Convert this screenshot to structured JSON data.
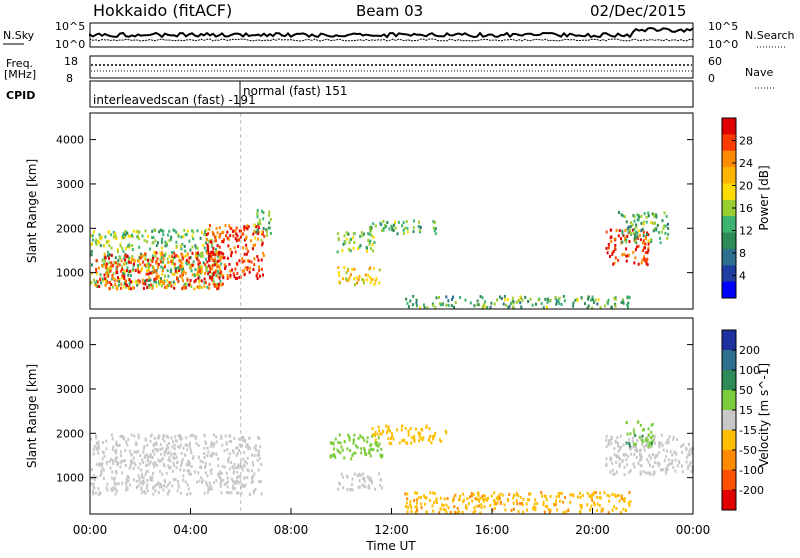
{
  "header": {
    "station": "Hokkaido (fitACF)",
    "beam": "Beam 03",
    "date": "02/Dec/2015"
  },
  "noise_panel": {
    "left_label": "N.Sky",
    "right_label": "N.Search",
    "left_ticks": [
      "10^5",
      "10^0"
    ],
    "right_ticks": [
      "10^5",
      "10^0"
    ]
  },
  "freq_panel": {
    "left_label_1": "Freq.",
    "left_label_2": "[MHz]",
    "left_ticks": [
      "18",
      "8"
    ],
    "right_label": "Nave",
    "right_ticks": [
      "60",
      "0"
    ]
  },
  "cpid_panel": {
    "label": "CPID",
    "program_1": "interleavedscan (fast) -191",
    "program_2": "normal (fast) 151"
  },
  "power_panel": {
    "ylabel": "Slant Range [km]",
    "colorbar_label": "Power [dB]",
    "colorbar_ticks": [
      "28",
      "24",
      "20",
      "16",
      "12",
      "8",
      "4"
    ],
    "colorbar_colors": [
      "#e10000",
      "#ff3c00",
      "#ff8c00",
      "#ffb400",
      "#ffdc00",
      "#9acd32",
      "#3cb371",
      "#2e8b57",
      "#2f6f8f",
      "#1e3f9f",
      "#0000ff"
    ]
  },
  "velocity_panel": {
    "ylabel": "Slant Range [km]",
    "colorbar_label": "Velocity [m s^-1]",
    "colorbar_ticks": [
      "200",
      "100",
      "50",
      "15",
      "-15",
      "-50",
      "-100",
      "-200"
    ],
    "colorbar_colors": [
      "#1e2fa0",
      "#2e6f8f",
      "#2e8b57",
      "#7ccd3c",
      "#c8c8c8",
      "#ffbf00",
      "#ff8c00",
      "#ff5000",
      "#e10000"
    ]
  },
  "xaxis": {
    "label": "Time UT",
    "ticks": [
      "00:00",
      "04:00",
      "08:00",
      "12:00",
      "16:00",
      "20:00",
      "00:00"
    ]
  },
  "chart_data": {
    "type": "heatmap",
    "title": "Hokkaido (fitACF)  Beam 03  02/Dec/2015",
    "xlabel": "Time UT",
    "ylabel": "Slant Range [km]",
    "xlim_hours": [
      0,
      24
    ],
    "ylim_km": [
      180,
      4600
    ],
    "yticks_km": [
      1000,
      2000,
      3000,
      4000
    ],
    "program_change_hour": 6.0,
    "power_regions": [
      {
        "t0": 0.0,
        "t1": 5.2,
        "r0": 700,
        "r1": 2000,
        "level_db": 14
      },
      {
        "t0": 0.2,
        "t1": 5.3,
        "r0": 650,
        "r1": 1500,
        "level_db": 26
      },
      {
        "t0": 4.6,
        "t1": 6.9,
        "r0": 900,
        "r1": 2100,
        "level_db": 28
      },
      {
        "t0": 6.5,
        "t1": 7.2,
        "r0": 1750,
        "r1": 2450,
        "level_db": 14
      },
      {
        "t0": 9.7,
        "t1": 11.4,
        "r0": 1500,
        "r1": 1950,
        "level_db": 14
      },
      {
        "t0": 9.8,
        "t1": 11.5,
        "r0": 750,
        "r1": 1150,
        "level_db": 20
      },
      {
        "t0": 11.0,
        "t1": 13.8,
        "r0": 1900,
        "r1": 2200,
        "level_db": 12
      },
      {
        "t0": 12.5,
        "t1": 21.5,
        "r0": 230,
        "r1": 500,
        "level_db": 12
      },
      {
        "t0": 20.5,
        "t1": 22.2,
        "r0": 1200,
        "r1": 2000,
        "level_db": 28
      },
      {
        "t0": 21.0,
        "t1": 23.0,
        "r0": 1700,
        "r1": 2400,
        "level_db": 12
      }
    ],
    "velocity_regions": [
      {
        "t0": 0.0,
        "t1": 6.8,
        "r0": 650,
        "r1": 2000,
        "velocity": 0
      },
      {
        "t0": 9.5,
        "t1": 11.6,
        "r0": 1450,
        "r1": 2000,
        "velocity": 30
      },
      {
        "t0": 9.8,
        "t1": 11.6,
        "r0": 750,
        "r1": 1150,
        "velocity": 0
      },
      {
        "t0": 11.2,
        "t1": 14.2,
        "r0": 1800,
        "r1": 2200,
        "velocity": -30
      },
      {
        "t0": 12.5,
        "t1": 21.5,
        "r0": 230,
        "r1": 700,
        "velocity": -40
      },
      {
        "t0": 20.5,
        "t1": 24.0,
        "r0": 1100,
        "r1": 2000,
        "velocity": 0
      },
      {
        "t0": 21.3,
        "t1": 22.4,
        "r0": 1700,
        "r1": 2300,
        "velocity": 40
      }
    ]
  }
}
